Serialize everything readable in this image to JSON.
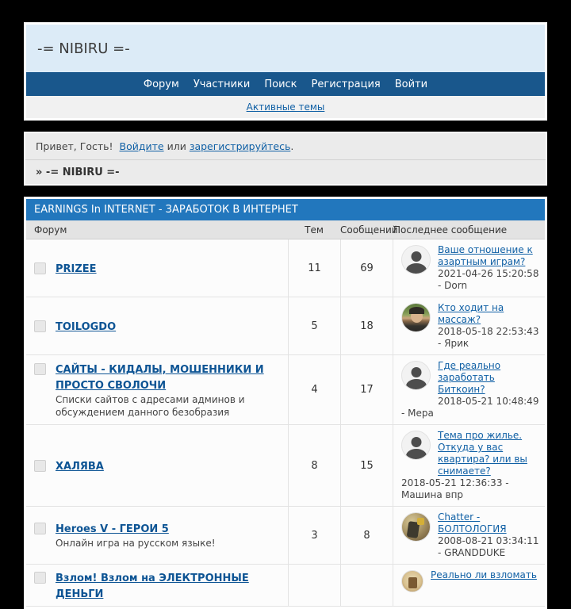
{
  "header": {
    "site_title": "-= NIBIRU =-"
  },
  "nav": {
    "items": [
      "Форум",
      "Участники",
      "Поиск",
      "Регистрация",
      "Войти"
    ]
  },
  "subnav": {
    "active_topics": "Активные темы"
  },
  "welcome": {
    "greeting": "Привет, Гость!",
    "login_link": "Войдите",
    "or_text": "или",
    "register_link": "зарегистрируйтесь",
    "period": "."
  },
  "breadcrumb": {
    "text": "» -= NIBIRU =-"
  },
  "category": {
    "title": "EARNINGS In INTERNET - ЗАРАБОТОК В ИНТЕРНЕТ"
  },
  "table": {
    "headers": {
      "forum": "Форум",
      "threads": "Тем",
      "posts": "Сообщений",
      "last_post": "Последнее сообщение"
    },
    "rows": [
      {
        "name": "PRIZEE",
        "description": "",
        "threads": "11",
        "posts": "69",
        "last_title": "Ваше отношение к азартным играм?",
        "last_meta": "2021-04-26 15:20:58 - Dorn",
        "avatar": "default"
      },
      {
        "name": "TOILOGDO",
        "description": "",
        "threads": "5",
        "posts": "18",
        "last_title": "Кто ходит на массаж?",
        "last_meta": "2018-05-18 22:53:43 - Ярик",
        "avatar": "photo"
      },
      {
        "name": "САЙТЫ - КИДАЛЫ, МОШЕННИКИ И ПРОСТО СВОЛОЧИ",
        "description": "Списки сайтов с адресами админов и обсуждением данного безобразия",
        "threads": "4",
        "posts": "17",
        "last_title": "Где реально заработать Биткоин?",
        "last_meta": "2018-05-21 10:48:49 - Мера",
        "avatar": "default"
      },
      {
        "name": "ХАЛЯВА",
        "description": "",
        "threads": "8",
        "posts": "15",
        "last_title": "Тема про жилье. Откуда у вас квартира? или вы снимаете?",
        "last_meta": "2018-05-21 12:36:33 - Машина впр",
        "avatar": "default"
      },
      {
        "name": "Heroes V - ГЕРОИ 5",
        "description": "Онлайн игра на русском языке!",
        "threads": "3",
        "posts": "8",
        "last_title": "Chatter - БОЛТОЛОГИЯ",
        "last_meta": "2008-08-21 03:34:11 - GRANDDUKE",
        "avatar": "heroes"
      },
      {
        "name": "Взлом! Взлом на ЭЛЕКТРОННЫЕ ДЕНЬГИ",
        "description": "",
        "threads": "",
        "posts": "",
        "last_title": "Реально ли взломать",
        "last_meta": "",
        "avatar": "small"
      }
    ]
  },
  "colors": {
    "page_background": "#000000",
    "header_background": "#dcebf7",
    "nav_background": "#19578c",
    "category_background": "#2277bd",
    "link_blue": "#1060a5",
    "panel_gray": "#ebebeb",
    "table_header_gray": "#e3e3e3"
  }
}
